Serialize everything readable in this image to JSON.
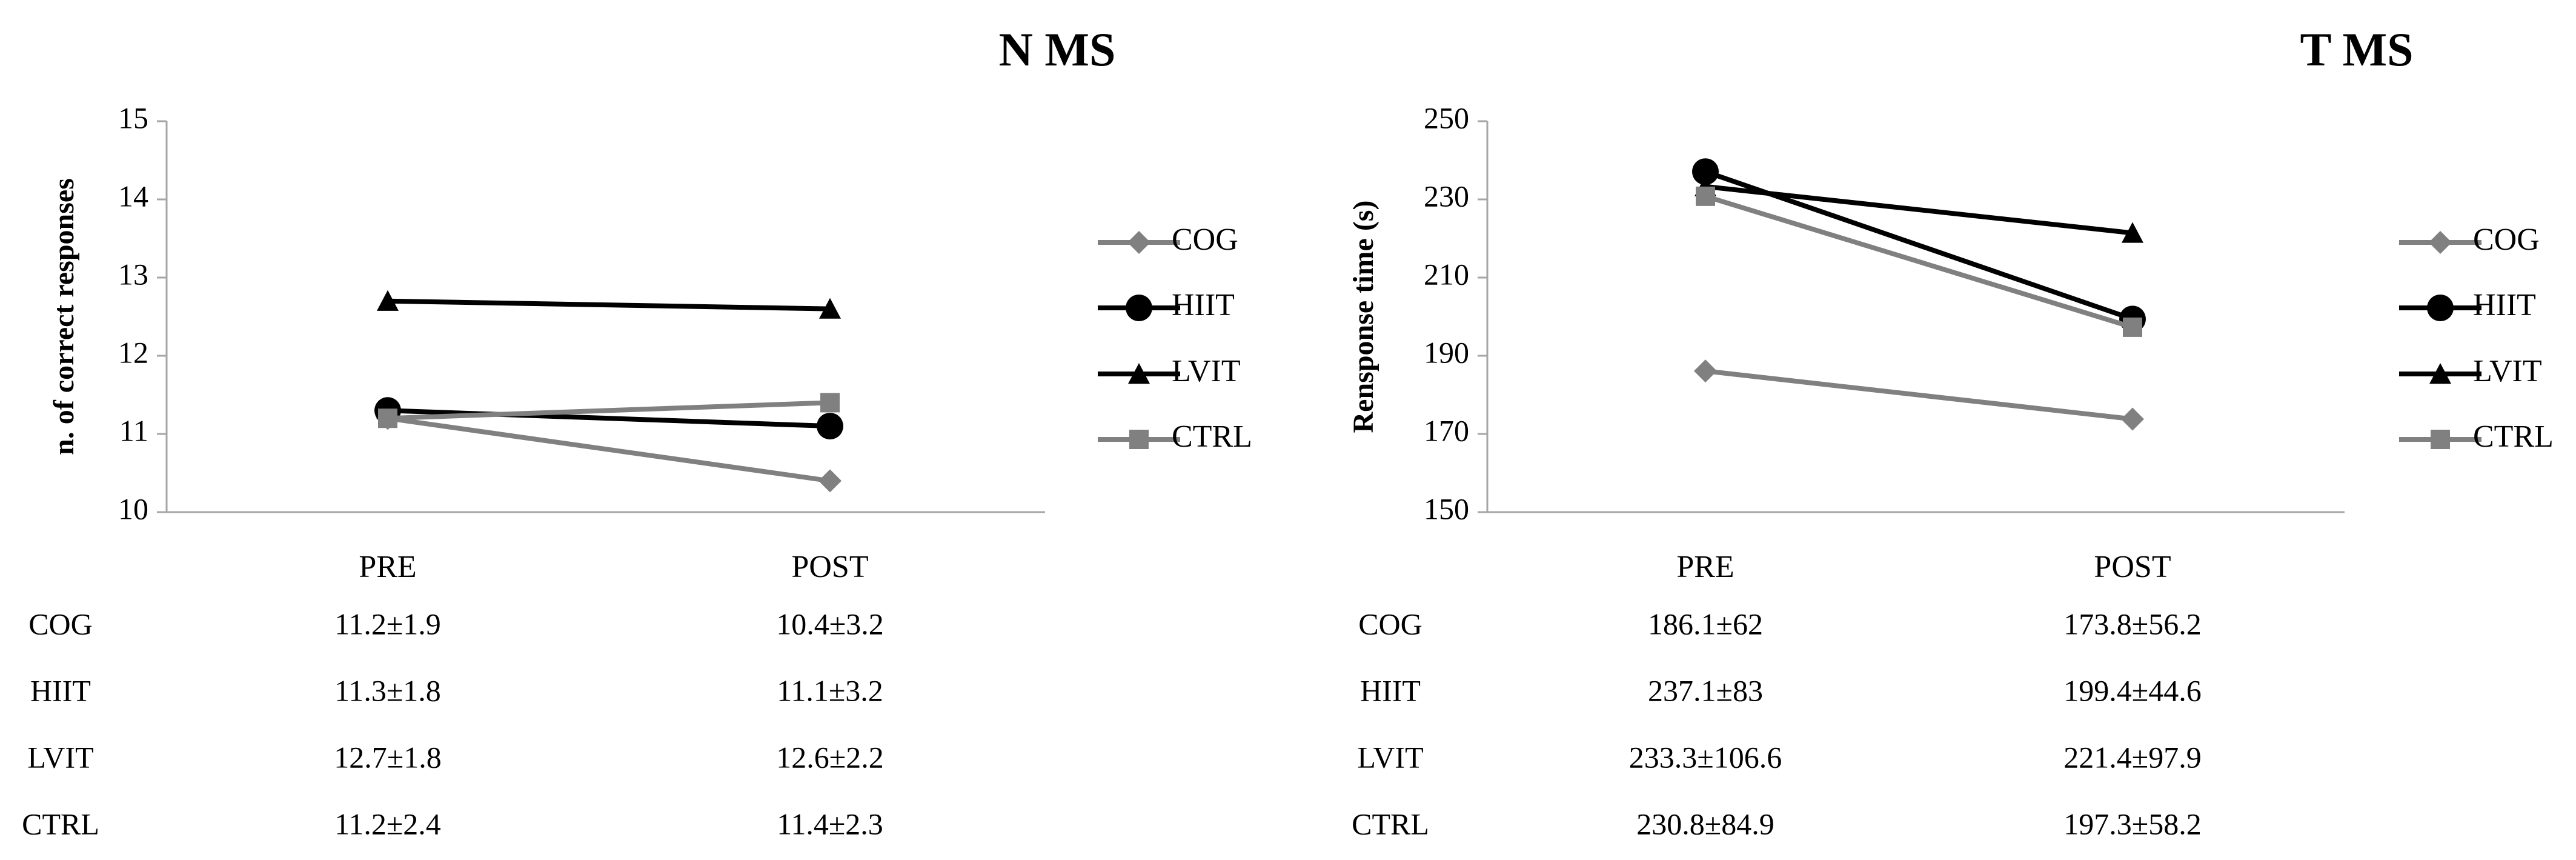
{
  "chart_data": [
    {
      "type": "line",
      "title": "N MS",
      "ylabel": "n. of correct responses",
      "xlabel": "",
      "categories": [
        "PRE",
        "POST"
      ],
      "ylim": [
        10,
        15
      ],
      "yticks": [
        "10",
        "11",
        "12",
        "13",
        "14",
        "15"
      ],
      "grid": false,
      "legend_position": "right",
      "series": [
        {
          "name": "COG",
          "values": [
            11.2,
            10.4
          ],
          "marker": "diamond",
          "color": "#808080"
        },
        {
          "name": "HIIT",
          "values": [
            11.3,
            11.1
          ],
          "marker": "circle",
          "color": "#000000"
        },
        {
          "name": "LVIT",
          "values": [
            12.7,
            12.6
          ],
          "marker": "triangle",
          "color": "#000000"
        },
        {
          "name": "CTRL",
          "values": [
            11.2,
            11.4
          ],
          "marker": "square",
          "color": "#808080"
        }
      ],
      "table": [
        {
          "group": "COG",
          "pre": "11.2±1.9",
          "post": "10.4±3.2"
        },
        {
          "group": "HIIT",
          "pre": "11.3±1.8",
          "post": "11.1±3.2"
        },
        {
          "group": "LVIT",
          "pre": "12.7±1.8",
          "post": "12.6±2.2"
        },
        {
          "group": "CTRL",
          "pre": "11.2±2.4",
          "post": "11.4±2.3"
        }
      ]
    },
    {
      "type": "line",
      "title": "T MS",
      "ylabel": "Rensponse time (s)",
      "xlabel": "",
      "categories": [
        "PRE",
        "POST"
      ],
      "ylim": [
        150,
        250
      ],
      "yticks": [
        "150",
        "170",
        "190",
        "210",
        "230",
        "250"
      ],
      "grid": false,
      "legend_position": "right",
      "series": [
        {
          "name": "COG",
          "values": [
            186.1,
            173.8
          ],
          "marker": "diamond",
          "color": "#808080"
        },
        {
          "name": "HIIT",
          "values": [
            237.1,
            199.4
          ],
          "marker": "circle",
          "color": "#000000"
        },
        {
          "name": "LVIT",
          "values": [
            233.3,
            221.4
          ],
          "marker": "triangle",
          "color": "#000000"
        },
        {
          "name": "CTRL",
          "values": [
            230.8,
            197.3
          ],
          "marker": "square",
          "color": "#808080"
        }
      ],
      "table": [
        {
          "group": "COG",
          "pre": "186.1±62",
          "post": "173.8±56.2"
        },
        {
          "group": "HIIT",
          "pre": "237.1±83",
          "post": "199.4±44.6"
        },
        {
          "group": "LVIT",
          "pre": "233.3±106.6",
          "post": "221.4±97.9"
        },
        {
          "group": "CTRL",
          "pre": "230.8±84.9",
          "post": "197.3±58.2"
        }
      ]
    }
  ]
}
